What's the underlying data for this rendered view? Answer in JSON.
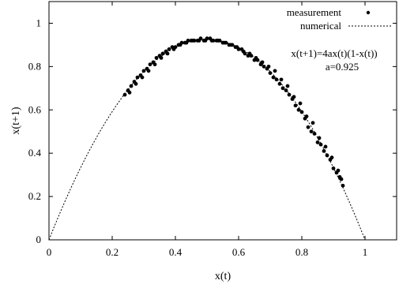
{
  "chart_data": {
    "type": "scatter",
    "xlabel": "x(t)",
    "ylabel": "x(t+1)",
    "xlim": [
      0,
      1.1
    ],
    "ylim": [
      0,
      1.1
    ],
    "x_ticks": [
      "0",
      "0.2",
      "0.4",
      "0.6",
      "0.8",
      "1"
    ],
    "y_ticks": [
      "0",
      "0.2",
      "0.4",
      "0.6",
      "0.8",
      "1"
    ],
    "x_tick_values": [
      0,
      0.2,
      0.4,
      0.6,
      0.8,
      1.0
    ],
    "y_tick_values": [
      0,
      0.2,
      0.4,
      0.6,
      0.8,
      1.0
    ],
    "grid": false,
    "legend_position": "top-right",
    "annotations": [
      "x(t+1)=4ax(t)(1-x(t))",
      "a=0.925"
    ],
    "parameter_a": 0.925,
    "series": [
      {
        "name": "measurement",
        "style": "points",
        "x": [
          0.24,
          0.25,
          0.26,
          0.27,
          0.28,
          0.29,
          0.3,
          0.31,
          0.32,
          0.33,
          0.34,
          0.35,
          0.36,
          0.37,
          0.38,
          0.39,
          0.4,
          0.41,
          0.42,
          0.43,
          0.44,
          0.45,
          0.46,
          0.47,
          0.48,
          0.49,
          0.5,
          0.51,
          0.52,
          0.53,
          0.54,
          0.55,
          0.56,
          0.57,
          0.58,
          0.59,
          0.6,
          0.61,
          0.62,
          0.63,
          0.64,
          0.65,
          0.66,
          0.67,
          0.68,
          0.69,
          0.7,
          0.71,
          0.72,
          0.73,
          0.74,
          0.75,
          0.76,
          0.77,
          0.78,
          0.79,
          0.8,
          0.81,
          0.82,
          0.83,
          0.84,
          0.85,
          0.86,
          0.87,
          0.88,
          0.89,
          0.9,
          0.91,
          0.92,
          0.93,
          0.255,
          0.275,
          0.295,
          0.315,
          0.335,
          0.355,
          0.375,
          0.395,
          0.415,
          0.435,
          0.455,
          0.475,
          0.495,
          0.515,
          0.535,
          0.555,
          0.575,
          0.595,
          0.615,
          0.635,
          0.655,
          0.675,
          0.695,
          0.715,
          0.735,
          0.755,
          0.775,
          0.795,
          0.815,
          0.835,
          0.855,
          0.875,
          0.895,
          0.915,
          0.925
        ],
        "y": [
          0.67,
          0.69,
          0.71,
          0.73,
          0.75,
          0.76,
          0.78,
          0.79,
          0.81,
          0.82,
          0.84,
          0.85,
          0.86,
          0.87,
          0.88,
          0.89,
          0.89,
          0.9,
          0.91,
          0.91,
          0.92,
          0.92,
          0.92,
          0.92,
          0.93,
          0.92,
          0.93,
          0.93,
          0.92,
          0.92,
          0.92,
          0.91,
          0.91,
          0.9,
          0.9,
          0.89,
          0.88,
          0.88,
          0.86,
          0.85,
          0.85,
          0.83,
          0.83,
          0.81,
          0.8,
          0.79,
          0.77,
          0.75,
          0.74,
          0.72,
          0.7,
          0.69,
          0.67,
          0.65,
          0.62,
          0.6,
          0.59,
          0.56,
          0.52,
          0.5,
          0.49,
          0.45,
          0.44,
          0.41,
          0.39,
          0.37,
          0.33,
          0.31,
          0.29,
          0.25,
          0.68,
          0.72,
          0.75,
          0.78,
          0.81,
          0.84,
          0.86,
          0.88,
          0.9,
          0.91,
          0.92,
          0.92,
          0.92,
          0.92,
          0.92,
          0.91,
          0.9,
          0.89,
          0.87,
          0.86,
          0.84,
          0.82,
          0.8,
          0.78,
          0.74,
          0.71,
          0.66,
          0.63,
          0.57,
          0.54,
          0.47,
          0.43,
          0.38,
          0.32,
          0.28
        ]
      },
      {
        "name": "numerical",
        "style": "dashed-line",
        "function": "4*a*x*(1-x)",
        "x_range": [
          0,
          1
        ]
      }
    ]
  }
}
